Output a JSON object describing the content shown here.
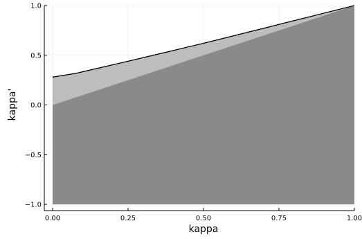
{
  "chart_data": {
    "type": "area",
    "title": "",
    "xlabel": "kappa",
    "ylabel": "kappa'",
    "xlim": [
      0,
      1
    ],
    "ylim": [
      -1,
      1
    ],
    "grid": true,
    "legend": "none",
    "x_ticks": [
      0,
      0.25,
      0.5,
      0.75,
      1
    ],
    "x_tick_labels": [
      "0.00",
      "0.25",
      "0.50",
      "0.75",
      "1.00"
    ],
    "y_ticks": [
      -1,
      -0.5,
      0,
      0.5,
      1
    ],
    "y_tick_labels": [
      "−1.0",
      "−0.5",
      "0.0",
      "0.5",
      "1.0"
    ],
    "series": [
      {
        "x": [
          0,
          0.08,
          0.25,
          0.5,
          0.75,
          1
        ],
        "upper": [
          0.28,
          0.32,
          0.44,
          0.62,
          0.81,
          1.0
        ],
        "lower": [
          0,
          0.08,
          0.25,
          0.5,
          0.75,
          1.0
        ],
        "fill_color": "#bdbdbd",
        "line_color": "#000000"
      },
      {
        "x": [
          0,
          1
        ],
        "upper": [
          0,
          1.0
        ],
        "lower": [
          -1,
          -1
        ],
        "fill_color": "#8a8a8a"
      }
    ]
  }
}
